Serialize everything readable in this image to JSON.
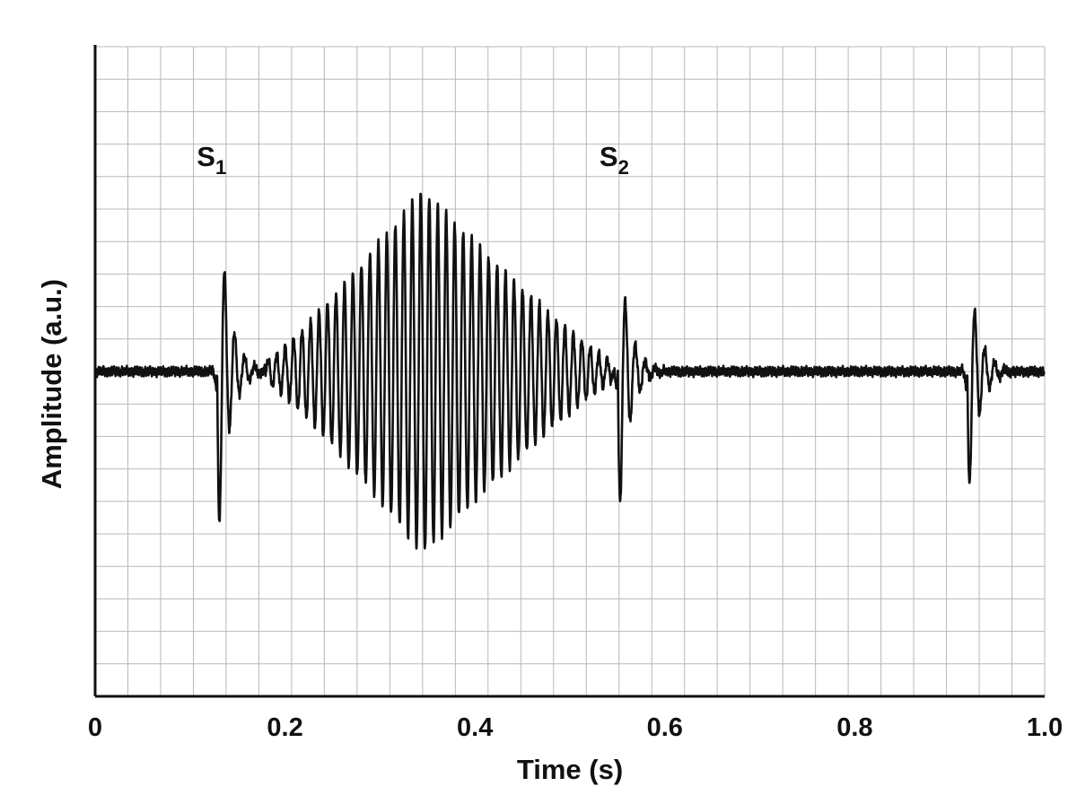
{
  "chart_data": {
    "type": "line",
    "xlabel": "Time (s)",
    "ylabel": "Amplitude (a.u.)",
    "xlim": [
      0,
      1.0
    ],
    "ylim": [
      -1.0,
      1.0
    ],
    "x_ticks": [
      {
        "value": 0,
        "label": "0"
      },
      {
        "value": 0.2,
        "label": "0.2"
      },
      {
        "value": 0.4,
        "label": "0.4"
      },
      {
        "value": 0.6,
        "label": "0.6"
      },
      {
        "value": 0.8,
        "label": "0.8"
      },
      {
        "value": 1.0,
        "label": "1.0"
      }
    ],
    "grid": true,
    "y_tick_labels_shown": false,
    "line_color": "#111111",
    "grid_color": "#b8b8b8",
    "annotations": [
      {
        "label": "S",
        "subscript": "1",
        "x": 0.134,
        "y": 0.66
      },
      {
        "label": "S",
        "subscript": "2",
        "x": 0.558,
        "y": 0.66
      }
    ],
    "series": [
      {
        "values_description_free": true,
        "components": [
          {
            "kind": "transient",
            "center": 0.134,
            "peak": 0.55,
            "trough": -0.6
          },
          {
            "kind": "murmur",
            "start": 0.18,
            "end": 0.545,
            "peak_time": 0.345,
            "peak_amplitude": 0.56,
            "cycles_per_second": 112
          },
          {
            "kind": "transient",
            "center": 0.556,
            "peak": 0.48,
            "trough": -0.42
          },
          {
            "kind": "transient",
            "center": 0.924,
            "peak": 0.41,
            "trough": -0.36
          }
        ]
      }
    ]
  }
}
